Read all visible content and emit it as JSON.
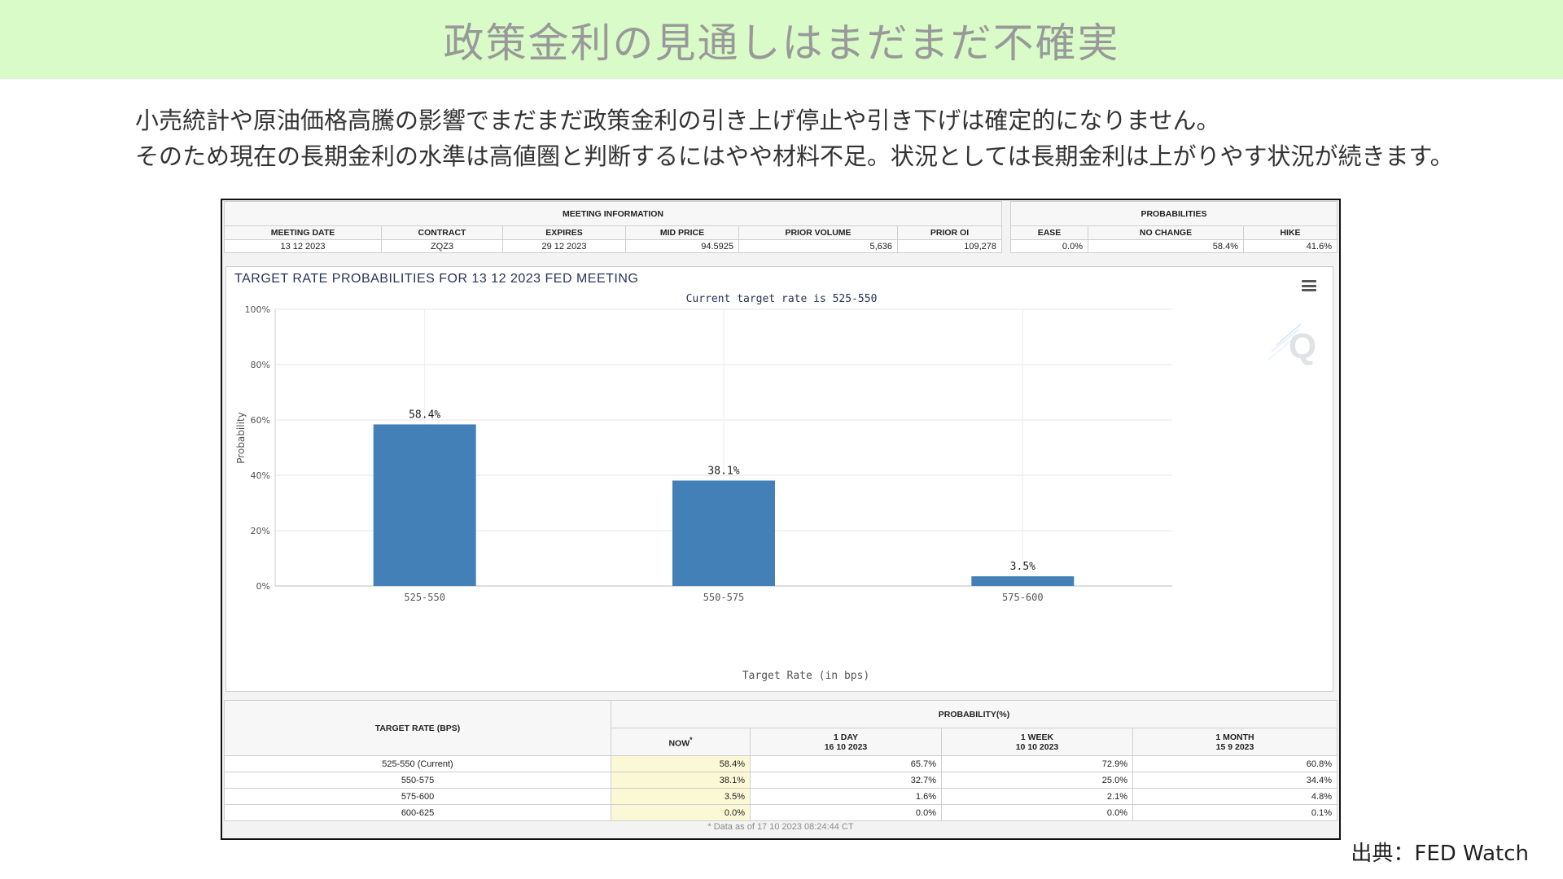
{
  "slide": {
    "title": "政策金利の見通しはまだまだ不確実",
    "body_line1": "小売統計や原油価格高騰の影響でまだまだ政策金利の引き上げ停止や引き下げは確定的になりません。",
    "body_line2": "そのため現在の長期金利の水準は高値圏と判断するにはやや材料不足。状況としては長期金利は上がりやす状況が続きます。",
    "source": "出典：FED Watch",
    "colors": {
      "header_bg": "#d9fbc8",
      "title": "#999999"
    }
  },
  "meeting_info": {
    "heading": "MEETING INFORMATION",
    "columns": [
      "MEETING DATE",
      "CONTRACT",
      "EXPIRES",
      "MID PRICE",
      "PRIOR VOLUME",
      "PRIOR OI"
    ],
    "row": [
      "13 12 2023",
      "ZQZ3",
      "29 12 2023",
      "94.5925",
      "5,636",
      "109,278"
    ]
  },
  "probabilities": {
    "heading": "PROBABILITIES",
    "columns": [
      "EASE",
      "NO CHANGE",
      "HIKE"
    ],
    "row": [
      "0.0%",
      "58.4%",
      "41.6%"
    ]
  },
  "chart_panel": {
    "menu_icon": "hamburger-menu-icon",
    "watermark_icon": "cme-q-logo"
  },
  "chart_data": {
    "type": "bar",
    "title": "TARGET RATE PROBABILITIES FOR 13 12 2023 FED MEETING",
    "subtitle": "Current target rate is 525-550",
    "categories": [
      "525-550",
      "550-575",
      "575-600"
    ],
    "values": [
      58.4,
      38.1,
      3.5
    ],
    "value_labels": [
      "58.4%",
      "38.1%",
      "3.5%"
    ],
    "xlabel": "Target Rate (in bps)",
    "ylabel": "Probability",
    "ylim": [
      0,
      100
    ],
    "yticks": [
      0,
      20,
      40,
      60,
      80,
      100
    ],
    "ytick_labels": [
      "0%",
      "20%",
      "40%",
      "60%",
      "80%",
      "100%"
    ],
    "grid": true,
    "bar_color": "#4380b8"
  },
  "prob_table": {
    "target_rate_header": "TARGET RATE (BPS)",
    "probability_header": "PROBABILITY(%)",
    "now_header": "NOW",
    "now_marker": "*",
    "day_header": "1 DAY",
    "day_date": "16 10 2023",
    "week_header": "1 WEEK",
    "week_date": "10 10 2023",
    "month_header": "1 MONTH",
    "month_date": "15 9 2023",
    "rows": [
      [
        "525-550 (Current)",
        "58.4%",
        "65.7%",
        "72.9%",
        "60.8%"
      ],
      [
        "550-575",
        "38.1%",
        "32.7%",
        "25.0%",
        "34.4%"
      ],
      [
        "575-600",
        "3.5%",
        "1.6%",
        "2.1%",
        "4.8%"
      ],
      [
        "600-625",
        "0.0%",
        "0.0%",
        "0.0%",
        "0.1%"
      ]
    ],
    "footnote": "* Data as of 17 10 2023 08:24:44 CT"
  }
}
